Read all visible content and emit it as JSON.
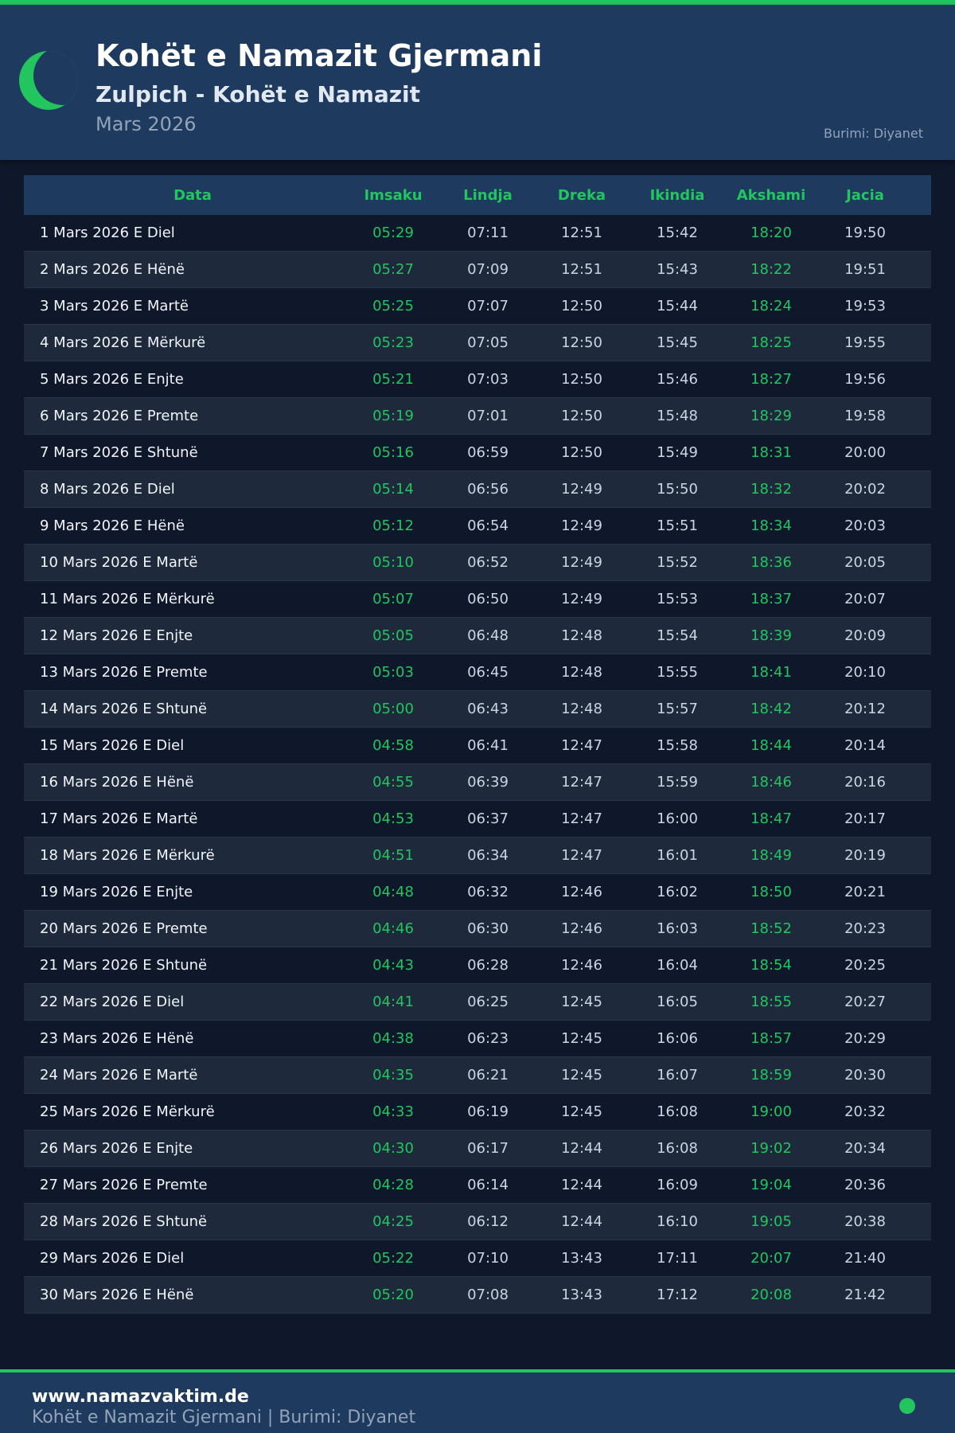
{
  "header": {
    "title": "Kohët e Namazit Gjermani",
    "subtitle": "Zulpich - Kohët e Namazit",
    "month": "Mars 2026",
    "source": "Burimi: Diyanet"
  },
  "colors": {
    "accent": "#22c55e",
    "header_bg": "#1e3a5f",
    "page_bg": "#0f172a"
  },
  "table": {
    "columns": [
      "Data",
      "Imsaku",
      "Lindja",
      "Dreka",
      "Ikindia",
      "Akshami",
      "Jacia"
    ],
    "rows": [
      [
        "1 Mars 2026 E Diel",
        "05:29",
        "07:11",
        "12:51",
        "15:42",
        "18:20",
        "19:50"
      ],
      [
        "2 Mars 2026 E Hënë",
        "05:27",
        "07:09",
        "12:51",
        "15:43",
        "18:22",
        "19:51"
      ],
      [
        "3 Mars 2026 E Martë",
        "05:25",
        "07:07",
        "12:50",
        "15:44",
        "18:24",
        "19:53"
      ],
      [
        "4 Mars 2026 E Mërkurë",
        "05:23",
        "07:05",
        "12:50",
        "15:45",
        "18:25",
        "19:55"
      ],
      [
        "5 Mars 2026 E Enjte",
        "05:21",
        "07:03",
        "12:50",
        "15:46",
        "18:27",
        "19:56"
      ],
      [
        "6 Mars 2026 E Premte",
        "05:19",
        "07:01",
        "12:50",
        "15:48",
        "18:29",
        "19:58"
      ],
      [
        "7 Mars 2026 E Shtunë",
        "05:16",
        "06:59",
        "12:50",
        "15:49",
        "18:31",
        "20:00"
      ],
      [
        "8 Mars 2026 E Diel",
        "05:14",
        "06:56",
        "12:49",
        "15:50",
        "18:32",
        "20:02"
      ],
      [
        "9 Mars 2026 E Hënë",
        "05:12",
        "06:54",
        "12:49",
        "15:51",
        "18:34",
        "20:03"
      ],
      [
        "10 Mars 2026 E Martë",
        "05:10",
        "06:52",
        "12:49",
        "15:52",
        "18:36",
        "20:05"
      ],
      [
        "11 Mars 2026 E Mërkurë",
        "05:07",
        "06:50",
        "12:49",
        "15:53",
        "18:37",
        "20:07"
      ],
      [
        "12 Mars 2026 E Enjte",
        "05:05",
        "06:48",
        "12:48",
        "15:54",
        "18:39",
        "20:09"
      ],
      [
        "13 Mars 2026 E Premte",
        "05:03",
        "06:45",
        "12:48",
        "15:55",
        "18:41",
        "20:10"
      ],
      [
        "14 Mars 2026 E Shtunë",
        "05:00",
        "06:43",
        "12:48",
        "15:57",
        "18:42",
        "20:12"
      ],
      [
        "15 Mars 2026 E Diel",
        "04:58",
        "06:41",
        "12:47",
        "15:58",
        "18:44",
        "20:14"
      ],
      [
        "16 Mars 2026 E Hënë",
        "04:55",
        "06:39",
        "12:47",
        "15:59",
        "18:46",
        "20:16"
      ],
      [
        "17 Mars 2026 E Martë",
        "04:53",
        "06:37",
        "12:47",
        "16:00",
        "18:47",
        "20:17"
      ],
      [
        "18 Mars 2026 E Mërkurë",
        "04:51",
        "06:34",
        "12:47",
        "16:01",
        "18:49",
        "20:19"
      ],
      [
        "19 Mars 2026 E Enjte",
        "04:48",
        "06:32",
        "12:46",
        "16:02",
        "18:50",
        "20:21"
      ],
      [
        "20 Mars 2026 E Premte",
        "04:46",
        "06:30",
        "12:46",
        "16:03",
        "18:52",
        "20:23"
      ],
      [
        "21 Mars 2026 E Shtunë",
        "04:43",
        "06:28",
        "12:46",
        "16:04",
        "18:54",
        "20:25"
      ],
      [
        "22 Mars 2026 E Diel",
        "04:41",
        "06:25",
        "12:45",
        "16:05",
        "18:55",
        "20:27"
      ],
      [
        "23 Mars 2026 E Hënë",
        "04:38",
        "06:23",
        "12:45",
        "16:06",
        "18:57",
        "20:29"
      ],
      [
        "24 Mars 2026 E Martë",
        "04:35",
        "06:21",
        "12:45",
        "16:07",
        "18:59",
        "20:30"
      ],
      [
        "25 Mars 2026 E Mërkurë",
        "04:33",
        "06:19",
        "12:45",
        "16:08",
        "19:00",
        "20:32"
      ],
      [
        "26 Mars 2026 E Enjte",
        "04:30",
        "06:17",
        "12:44",
        "16:08",
        "19:02",
        "20:34"
      ],
      [
        "27 Mars 2026 E Premte",
        "04:28",
        "06:14",
        "12:44",
        "16:09",
        "19:04",
        "20:36"
      ],
      [
        "28 Mars 2026 E Shtunë",
        "04:25",
        "06:12",
        "12:44",
        "16:10",
        "19:05",
        "20:38"
      ],
      [
        "29 Mars 2026 E Diel",
        "05:22",
        "07:10",
        "13:43",
        "17:11",
        "20:07",
        "21:40"
      ],
      [
        "30 Mars 2026 E Hënë",
        "05:20",
        "07:08",
        "13:43",
        "17:12",
        "20:08",
        "21:42"
      ]
    ]
  },
  "footer": {
    "site": "www.namazvaktim.de",
    "tagline": "Kohët e Namazit Gjermani | Burimi: Diyanet"
  }
}
